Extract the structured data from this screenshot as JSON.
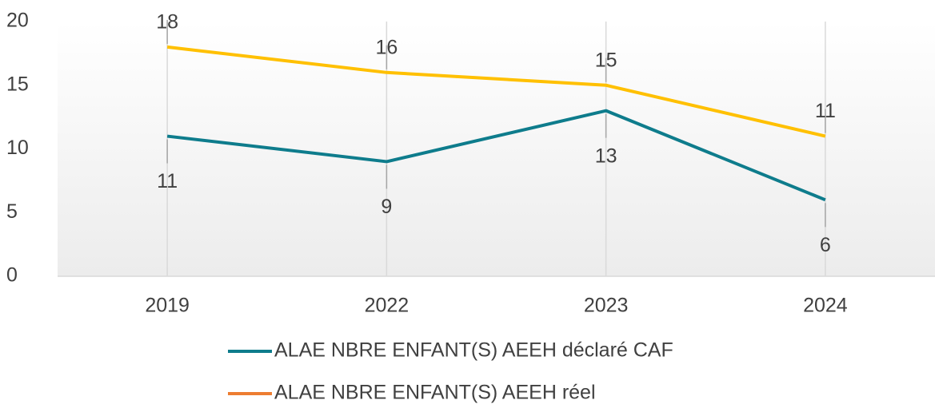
{
  "chart_data": {
    "type": "line",
    "categories": [
      "2019",
      "2022",
      "2023",
      "2024"
    ],
    "series": [
      {
        "name": "ALAE NBRE ENFANT(S) AEEH déclaré CAF",
        "color": "#0e7c8c",
        "legend_color": "#0e7c8c",
        "values": [
          11,
          9,
          13,
          6
        ]
      },
      {
        "name": "ALAE NBRE ENFANT(S) AEEH réel",
        "color": "#ffc000",
        "legend_color": "#ed7d31",
        "values": [
          18,
          16,
          15,
          11
        ]
      }
    ],
    "ylim": [
      0,
      20
    ],
    "yticks": [
      0,
      5,
      10,
      15,
      20
    ],
    "grid": true,
    "legend": "bottom"
  }
}
